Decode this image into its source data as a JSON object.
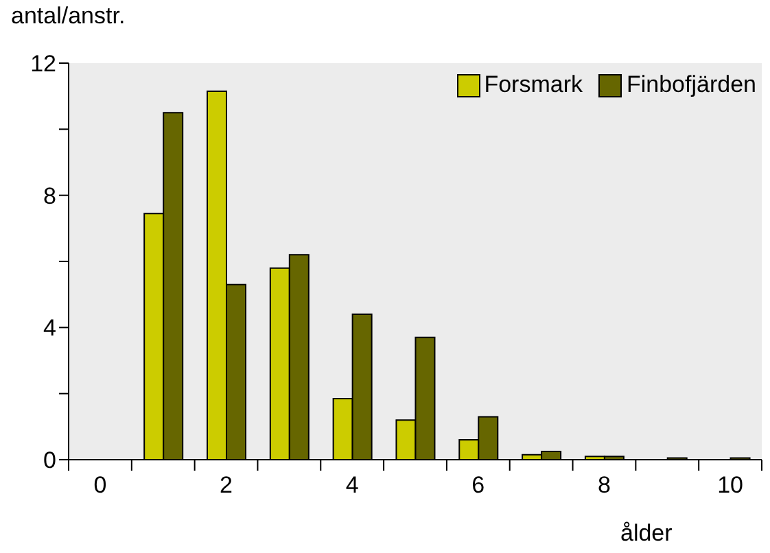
{
  "chart_data": {
    "type": "bar",
    "ylabel": "antal/anstr.",
    "xlabel": "ålder",
    "categories": [
      "0",
      null,
      "2",
      null,
      "4",
      null,
      "6",
      null,
      "8",
      null,
      "10"
    ],
    "series": [
      {
        "name": "Forsmark",
        "color": "#cccc00",
        "values": [
          null,
          7.45,
          11.15,
          5.8,
          1.85,
          1.2,
          0.6,
          0.15,
          0.1,
          null,
          null
        ]
      },
      {
        "name": "Finbofjärden",
        "color": "#666600",
        "values": [
          null,
          10.5,
          5.3,
          6.2,
          4.4,
          3.7,
          1.3,
          0.25,
          0.1,
          0.05,
          0.05
        ]
      }
    ],
    "ylim": [
      0,
      12
    ],
    "yticks": [
      0,
      {
        "value": 2,
        "label": null
      },
      4,
      {
        "value": 6,
        "label": null
      },
      8,
      {
        "value": 10,
        "label": null
      },
      12
    ],
    "legend": "top right"
  }
}
